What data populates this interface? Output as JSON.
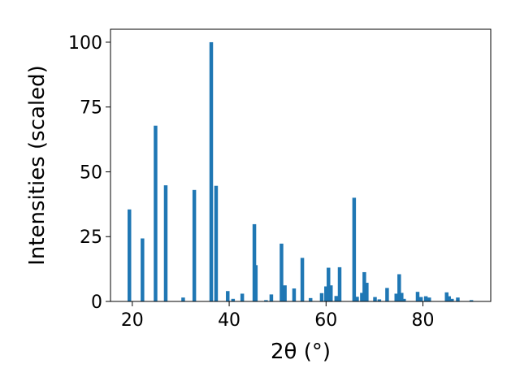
{
  "chart_data": {
    "type": "bar",
    "xlabel": "2θ (°)",
    "ylabel": "Intensities (scaled)",
    "xlim": [
      15.5,
      94
    ],
    "ylim": [
      0,
      105
    ],
    "xticks": [
      20,
      40,
      60,
      80
    ],
    "yticks": [
      0,
      25,
      50,
      75,
      100
    ],
    "bar_width": 0.75,
    "color": "#1f77b4",
    "grid": false,
    "x": [
      19.4,
      22.1,
      24.8,
      26.9,
      30.5,
      32.8,
      36.3,
      37.3,
      39.7,
      40.8,
      42.7,
      45.2,
      45.5,
      47.6,
      48.7,
      50.8,
      51.5,
      53.4,
      55.1,
      56.8,
      59.1,
      60.0,
      60.5,
      61.0,
      62.1,
      62.8,
      65.8,
      66.4,
      67.4,
      67.9,
      68.4,
      70.1,
      71.0,
      72.6,
      74.5,
      75.1,
      75.6,
      76.1,
      78.9,
      79.6,
      80.6,
      81.3,
      84.9,
      85.4,
      86.0,
      87.2,
      90.0
    ],
    "values": [
      35.5,
      24.3,
      67.8,
      44.8,
      1.5,
      43.0,
      100.0,
      44.6,
      4.0,
      1.0,
      3.0,
      29.8,
      14.0,
      0.5,
      2.7,
      22.3,
      6.2,
      5.0,
      16.8,
      1.3,
      3.2,
      5.8,
      13.0,
      6.2,
      2.1,
      13.2,
      40.0,
      1.8,
      3.3,
      11.3,
      7.2,
      1.7,
      0.8,
      5.2,
      3.0,
      10.5,
      3.3,
      1.0,
      3.7,
      1.7,
      2.0,
      1.5,
      3.5,
      2.0,
      1.0,
      1.5,
      0.5
    ]
  }
}
